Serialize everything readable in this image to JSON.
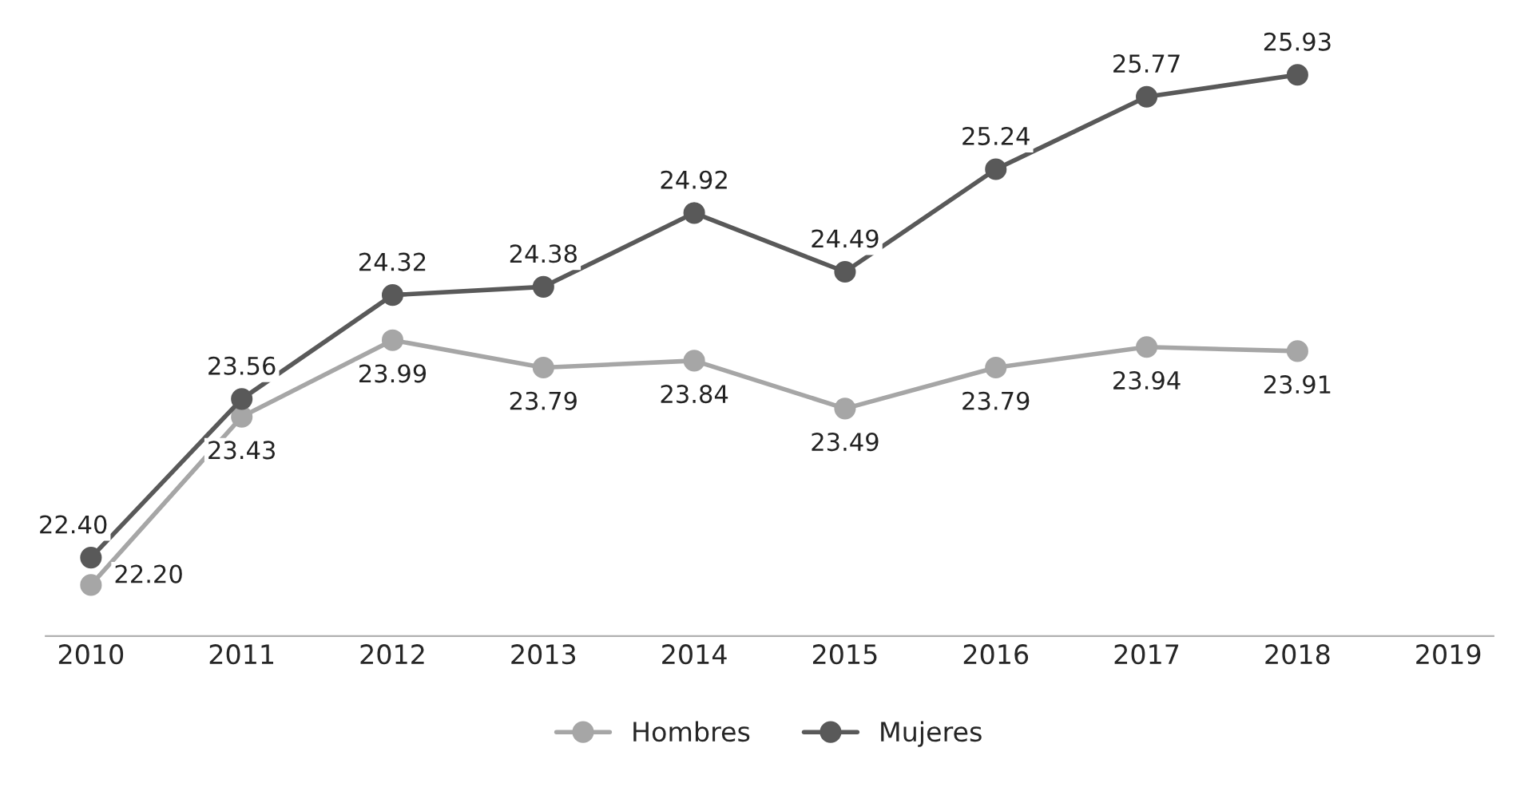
{
  "chart_data": {
    "type": "line",
    "categories": [
      "2010",
      "2011",
      "2012",
      "2013",
      "2014",
      "2015",
      "2016",
      "2017",
      "2018",
      "2019"
    ],
    "series": [
      {
        "name": "Hombres",
        "color": "#a6a6a6",
        "values": [
          22.2,
          23.43,
          23.99,
          23.79,
          23.84,
          23.49,
          23.79,
          23.94,
          23.91,
          null
        ],
        "value_labels": [
          "22.20",
          "23.43",
          "23.99",
          "23.79",
          "23.84",
          "23.49",
          "23.79",
          "23.94",
          "23.91",
          null
        ]
      },
      {
        "name": "Mujeres",
        "color": "#595959",
        "values": [
          22.4,
          23.56,
          24.32,
          24.38,
          24.92,
          24.49,
          25.24,
          25.77,
          25.93,
          null
        ],
        "value_labels": [
          "22.40",
          "23.56",
          "24.32",
          "24.38",
          "24.92",
          "24.49",
          "25.24",
          "25.77",
          "25.93",
          null
        ]
      }
    ],
    "marker": "circle",
    "line_style": "solid",
    "grid": false,
    "legend": "bottom"
  }
}
